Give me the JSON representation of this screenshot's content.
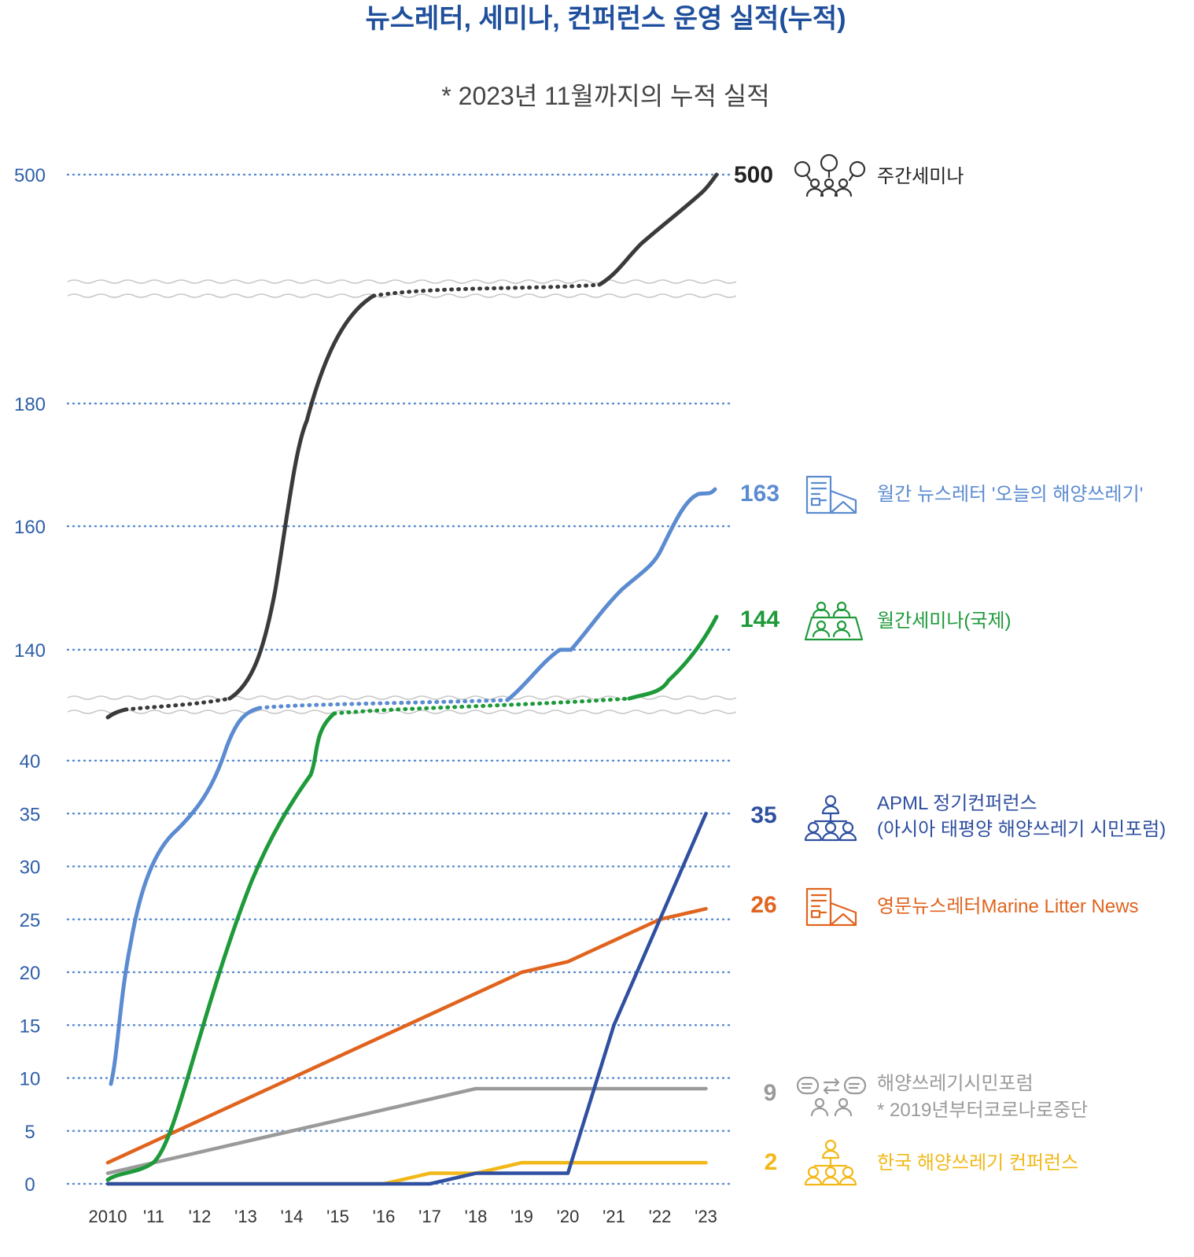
{
  "chart_data": {
    "type": "line",
    "title": "뉴스레터, 세미나, 컨퍼런스 운영 실적(누적)",
    "subtitle": "* 2023년 11월까지의 누적 실적",
    "x_labels": [
      "2010",
      "'11",
      "'12",
      "'13",
      "'14",
      "'15",
      "'16",
      "'17",
      "'18",
      "'19",
      "'20",
      "'21",
      "'22",
      "'23"
    ],
    "x": [
      2010,
      2011,
      2012,
      2013,
      2014,
      2015,
      2016,
      2017,
      2018,
      2019,
      2020,
      2021,
      2022,
      2023
    ],
    "y_ticks": [
      "0",
      "5",
      "10",
      "15",
      "20",
      "25",
      "30",
      "35",
      "40",
      "140",
      "160",
      "180",
      "500"
    ],
    "y_axis_broken": true,
    "grid": "dotted horizontal",
    "series": [
      {
        "key": "weekly",
        "name": "주간세미나",
        "end_label": "500",
        "color": "#3a3a3a",
        "values": [
          null,
          null,
          null,
          null,
          null,
          null,
          null,
          null,
          null,
          null,
          null,
          null,
          null,
          500
        ],
        "icon": "seminar-icon"
      },
      {
        "key": "monthly_nl",
        "name": "월간 뉴스레터 '오늘의 해양쓰레기'",
        "end_label": "163",
        "color": "#5b8bd0",
        "values": [
          10,
          30,
          36,
          null,
          null,
          null,
          null,
          null,
          null,
          null,
          140,
          150,
          155,
          163
        ],
        "icon": "newsletter-icon"
      },
      {
        "key": "monthly_sem",
        "name": "월간세미나(국제)",
        "end_label": "144",
        "color": "#1e9a3a",
        "values": [
          0,
          2,
          16,
          25,
          34,
          null,
          null,
          null,
          null,
          null,
          null,
          null,
          null,
          144
        ],
        "icon": "meeting-icon"
      },
      {
        "key": "apml",
        "name": "APML 정기컨퍼런스",
        "name_line2": "(아시아 태평양 해양쓰레기 시민포럼)",
        "end_label": "35",
        "color": "#2f4fa0",
        "values": [
          0,
          0,
          0,
          0,
          0,
          0,
          0,
          0,
          1,
          1,
          1,
          15,
          25,
          35
        ],
        "icon": "conference-icon"
      },
      {
        "key": "english_nl",
        "name": "영문뉴스레터Marine Litter News",
        "end_label": "26",
        "color": "#e0641e",
        "values": [
          2,
          4,
          6,
          8,
          10,
          12,
          14,
          16,
          18,
          20,
          21,
          23,
          25,
          26
        ],
        "icon": "newsletter-icon"
      },
      {
        "key": "citizen",
        "name": "해양쓰레기시민포럼",
        "name_line2": "* 2019년부터코로나로중단",
        "end_label": "9",
        "color": "#9a9a9a",
        "values": [
          1,
          2,
          3,
          4,
          5,
          6,
          7,
          8,
          9,
          9,
          9,
          9,
          9,
          9
        ],
        "icon": "forum-icon"
      },
      {
        "key": "korea_conf",
        "name": "한국 해양쓰레기 컨퍼런스",
        "end_label": "2",
        "color": "#f2b817",
        "values": [
          0,
          0,
          0,
          0,
          0,
          0,
          0,
          1,
          1,
          2,
          2,
          2,
          2,
          2
        ],
        "icon": "conference-icon"
      }
    ]
  },
  "colors": {
    "title": "#1f4f9c",
    "axis_text": "#2f5fa8",
    "grid": "#5b8bd0",
    "subtitle": "#444444"
  }
}
